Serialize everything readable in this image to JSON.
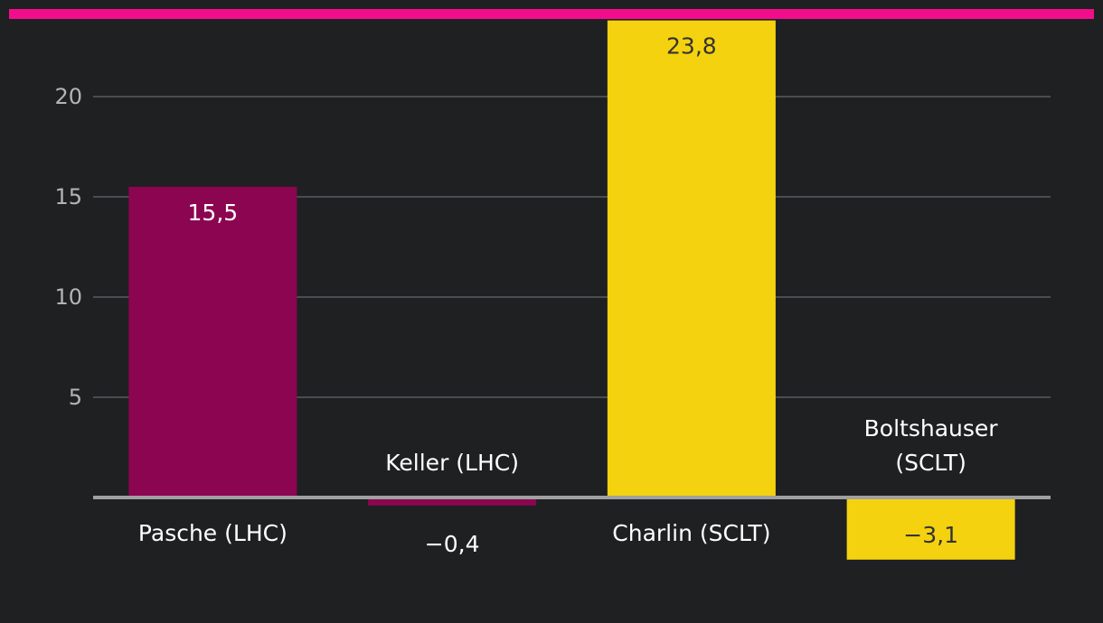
{
  "colors": {
    "background": "#1f2022",
    "accent": "#f20d8c",
    "lhc": "#8c0551",
    "sclt": "#f5d20f",
    "grid": "#5a5b5e",
    "baseline": "#a0a0a0"
  },
  "chart_data": {
    "type": "bar",
    "categories": [
      "Pasche (LHC)",
      "Keller (LHC)",
      "Charlin (SCLT)",
      [
        "Boltshauser",
        "(SCLT)"
      ]
    ],
    "values": [
      15.5,
      -0.4,
      23.8,
      -3.1
    ],
    "value_labels": [
      "15,5",
      "−0,4",
      "23,8",
      "−3,1"
    ],
    "bar_colors": [
      "#8c0551",
      "#8c0551",
      "#f5d20f",
      "#f5d20f"
    ],
    "value_label_colors": [
      "#ffffff",
      "#ffffff",
      "#333333",
      "#333333"
    ],
    "yticks": [
      5,
      10,
      15,
      20
    ],
    "ytick_labels": [
      "5",
      "10",
      "15",
      "20"
    ],
    "ylim": [
      -3.1,
      23.8
    ],
    "grid": true,
    "title": "",
    "xlabel": "",
    "ylabel": ""
  }
}
